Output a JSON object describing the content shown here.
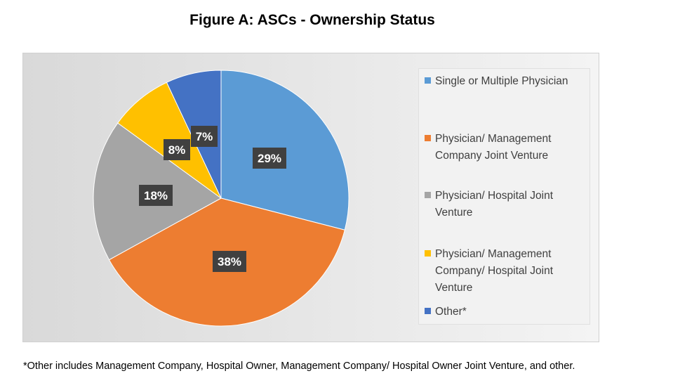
{
  "chart_data": {
    "type": "pie",
    "title": "Figure A: ASCs - Ownership Status",
    "slices": [
      {
        "label": "Single or Multiple Physician",
        "value": 29,
        "display": "29%",
        "color": "#5b9bd5"
      },
      {
        "label": "Physician/ Management Company Joint Venture",
        "value": 38,
        "display": "38%",
        "color": "#ed7d31"
      },
      {
        "label": "Physician/ Hospital Joint Venture",
        "value": 18,
        "display": "18%",
        "color": "#a5a5a5"
      },
      {
        "label": "Physician/ Management Company/ Hospital Joint Venture",
        "value": 8,
        "display": "8%",
        "color": "#ffc000"
      },
      {
        "label": "Other*",
        "value": 7,
        "display": "7%",
        "color": "#4472c4"
      }
    ],
    "legend_position": "right",
    "footnote": "*Other includes Management Company, Hospital Owner, Management Company/ Hospital Owner Joint Venture, and other."
  },
  "legend": {
    "lines": [
      [
        "Single or Multiple Physician"
      ],
      [
        "Physician/ Management",
        "Company Joint Venture"
      ],
      [
        "Physician/ Hospital Joint",
        "Venture"
      ],
      [
        "Physician/ Management",
        "Company/ Hospital Joint",
        "Venture"
      ],
      [
        "Other*"
      ]
    ]
  }
}
